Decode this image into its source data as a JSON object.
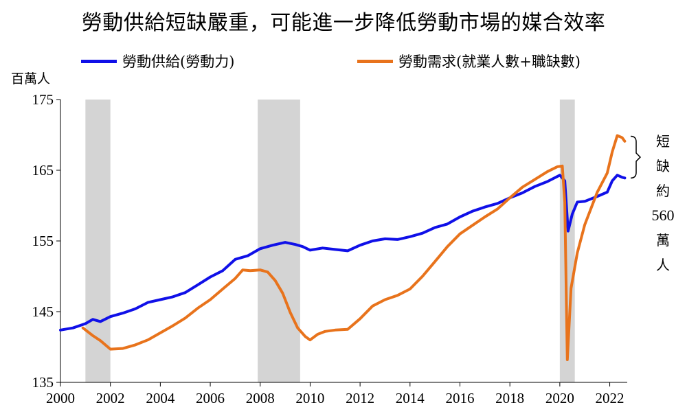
{
  "chart_data": {
    "type": "line",
    "title": "勞動供給短缺嚴重，可能進一步降低勞動市場的媒合效率",
    "ylabel": "百萬人",
    "xlabel": "",
    "xlim": [
      2000,
      2022.7
    ],
    "ylim": [
      135,
      175
    ],
    "yticks": [
      "135",
      "145",
      "155",
      "165",
      "175"
    ],
    "xticks": [
      "2000",
      "2002",
      "2004",
      "2006",
      "2008",
      "2010",
      "2012",
      "2014",
      "2016",
      "2018",
      "2020",
      "2022"
    ],
    "recessions": [
      [
        2001.0,
        2002.0
      ],
      [
        2007.9,
        2009.6
      ],
      [
        2020.0,
        2020.6
      ]
    ],
    "legend_position": "top",
    "series": [
      {
        "name": "勞動供給(勞動力)",
        "color": "#1010e8",
        "points": [
          [
            2000.0,
            142.4
          ],
          [
            2000.5,
            142.7
          ],
          [
            2001.0,
            143.3
          ],
          [
            2001.3,
            143.9
          ],
          [
            2001.6,
            143.6
          ],
          [
            2002.0,
            144.3
          ],
          [
            2002.5,
            144.8
          ],
          [
            2003.0,
            145.4
          ],
          [
            2003.5,
            146.3
          ],
          [
            2004.0,
            146.7
          ],
          [
            2004.5,
            147.1
          ],
          [
            2005.0,
            147.7
          ],
          [
            2005.5,
            148.8
          ],
          [
            2006.0,
            149.9
          ],
          [
            2006.5,
            150.8
          ],
          [
            2007.0,
            152.4
          ],
          [
            2007.5,
            152.9
          ],
          [
            2008.0,
            153.9
          ],
          [
            2008.5,
            154.4
          ],
          [
            2009.0,
            154.8
          ],
          [
            2009.4,
            154.5
          ],
          [
            2009.7,
            154.2
          ],
          [
            2010.0,
            153.7
          ],
          [
            2010.5,
            154.0
          ],
          [
            2011.0,
            153.8
          ],
          [
            2011.5,
            153.6
          ],
          [
            2012.0,
            154.4
          ],
          [
            2012.5,
            155.0
          ],
          [
            2013.0,
            155.3
          ],
          [
            2013.5,
            155.2
          ],
          [
            2014.0,
            155.6
          ],
          [
            2014.5,
            156.1
          ],
          [
            2015.0,
            156.9
          ],
          [
            2015.5,
            157.4
          ],
          [
            2016.0,
            158.4
          ],
          [
            2016.5,
            159.2
          ],
          [
            2017.0,
            159.8
          ],
          [
            2017.5,
            160.3
          ],
          [
            2018.0,
            161.1
          ],
          [
            2018.5,
            161.8
          ],
          [
            2019.0,
            162.7
          ],
          [
            2019.5,
            163.4
          ],
          [
            2020.0,
            164.3
          ],
          [
            2020.2,
            163.5
          ],
          [
            2020.33,
            156.4
          ],
          [
            2020.5,
            158.8
          ],
          [
            2020.7,
            160.5
          ],
          [
            2021.0,
            160.6
          ],
          [
            2021.5,
            161.3
          ],
          [
            2021.9,
            161.9
          ],
          [
            2022.1,
            163.5
          ],
          [
            2022.3,
            164.3
          ],
          [
            2022.5,
            164.0
          ],
          [
            2022.6,
            163.9
          ]
        ]
      },
      {
        "name": "勞動需求(就業人數+職缺數)",
        "color": "#e8731c",
        "points": [
          [
            2000.9,
            142.7
          ],
          [
            2001.3,
            141.6
          ],
          [
            2001.6,
            140.9
          ],
          [
            2002.0,
            139.7
          ],
          [
            2002.5,
            139.8
          ],
          [
            2003.0,
            140.3
          ],
          [
            2003.5,
            141.0
          ],
          [
            2004.0,
            142.0
          ],
          [
            2004.5,
            143.0
          ],
          [
            2005.0,
            144.1
          ],
          [
            2005.5,
            145.5
          ],
          [
            2006.0,
            146.7
          ],
          [
            2006.5,
            148.2
          ],
          [
            2007.0,
            149.7
          ],
          [
            2007.3,
            150.9
          ],
          [
            2007.6,
            150.8
          ],
          [
            2008.0,
            150.9
          ],
          [
            2008.3,
            150.6
          ],
          [
            2008.6,
            149.4
          ],
          [
            2008.9,
            147.6
          ],
          [
            2009.2,
            144.9
          ],
          [
            2009.5,
            142.7
          ],
          [
            2009.8,
            141.5
          ],
          [
            2010.0,
            141.0
          ],
          [
            2010.3,
            141.8
          ],
          [
            2010.6,
            142.2
          ],
          [
            2011.0,
            142.4
          ],
          [
            2011.5,
            142.5
          ],
          [
            2012.0,
            144.0
          ],
          [
            2012.5,
            145.8
          ],
          [
            2013.0,
            146.7
          ],
          [
            2013.5,
            147.3
          ],
          [
            2014.0,
            148.2
          ],
          [
            2014.5,
            150.0
          ],
          [
            2015.0,
            152.1
          ],
          [
            2015.5,
            154.2
          ],
          [
            2016.0,
            156.0
          ],
          [
            2016.5,
            157.2
          ],
          [
            2017.0,
            158.4
          ],
          [
            2017.5,
            159.5
          ],
          [
            2018.0,
            161.1
          ],
          [
            2018.5,
            162.6
          ],
          [
            2019.0,
            163.7
          ],
          [
            2019.5,
            164.8
          ],
          [
            2019.9,
            165.5
          ],
          [
            2020.1,
            165.6
          ],
          [
            2020.2,
            160.5
          ],
          [
            2020.3,
            138.2
          ],
          [
            2020.45,
            148.3
          ],
          [
            2020.7,
            153.3
          ],
          [
            2021.0,
            157.3
          ],
          [
            2021.5,
            161.9
          ],
          [
            2021.9,
            164.6
          ],
          [
            2022.1,
            167.6
          ],
          [
            2022.3,
            169.9
          ],
          [
            2022.5,
            169.6
          ],
          [
            2022.6,
            169.1
          ]
        ]
      }
    ],
    "annotation": {
      "chars": [
        "短",
        "缺",
        "約"
      ],
      "number": "560",
      "chars_after": [
        "萬",
        "人"
      ]
    }
  }
}
